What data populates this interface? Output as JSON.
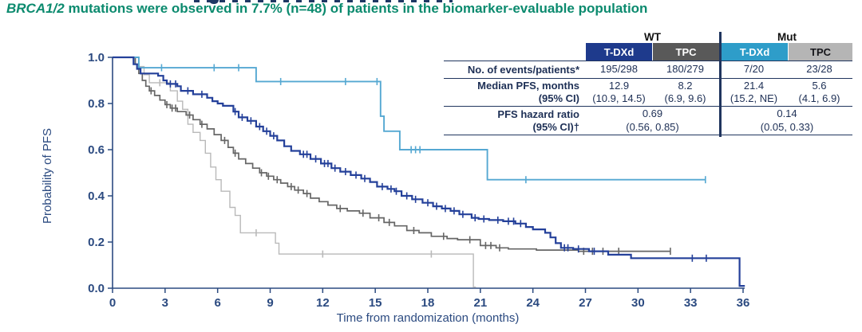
{
  "subtitle": {
    "gene": "BRCA1/2",
    "rest": " mutations were observed in 7.7% (n=48) of patients in the biomarker-evaluable population",
    "color": "#0b8a6e"
  },
  "table": {
    "groups": [
      {
        "label": "WT"
      },
      {
        "label": "Mut"
      }
    ],
    "columns": [
      {
        "label": "T-DXd",
        "bg": "#1e3a8c",
        "fg": "#ffffff"
      },
      {
        "label": "TPC",
        "bg": "#595959",
        "fg": "#ffffff"
      },
      {
        "label": "T-DXd",
        "bg": "#2e9dc9",
        "fg": "#ffffff"
      },
      {
        "label": "TPC",
        "bg": "#b5b5b5",
        "fg": "#15151a"
      }
    ],
    "rows": {
      "events": {
        "label": "No. of events/patients*",
        "values": [
          "195/298",
          "180/279",
          "7/20",
          "23/28"
        ]
      },
      "median": {
        "label": "Median PFS, months",
        "label2": "(95% CI)",
        "values": [
          "12.9",
          "8.2",
          "21.4",
          "5.6"
        ],
        "values2": [
          "(10.9, 14.5)",
          "(6.9, 9.6)",
          "(15.2, NE)",
          "(4.1, 6.9)"
        ]
      },
      "hr": {
        "label": "PFS hazard ratio",
        "label2": "(95% CI)†",
        "values": [
          "0.69",
          "0.14"
        ],
        "values2": [
          "(0.56, 0.85)",
          "(0.05, 0.33)"
        ]
      }
    }
  },
  "chart_data": {
    "type": "line",
    "subtype": "kaplan-meier-step",
    "title": "",
    "xlabel": "Time from randomization (months)",
    "ylabel": "Probability of PFS",
    "xlim": [
      0,
      36
    ],
    "ylim": [
      0.0,
      1.0
    ],
    "xticks": [
      0,
      3,
      6,
      9,
      12,
      15,
      18,
      21,
      24,
      27,
      30,
      33,
      36
    ],
    "yticks": [
      0.0,
      0.2,
      0.4,
      0.6,
      0.8,
      1.0
    ],
    "grid": false,
    "legend_position": "none (table acts as legend)",
    "axis_color": "#2b4a80",
    "series": [
      {
        "name": "TPC (Mut)",
        "color": "#b9b9b9",
        "width": 1.4,
        "points": [
          [
            0,
            1
          ],
          [
            1.5,
            0.96
          ],
          [
            1.8,
            0.925
          ],
          [
            2.1,
            0.89
          ],
          [
            3.3,
            0.855
          ],
          [
            3.7,
            0.81
          ],
          [
            4.0,
            0.775
          ],
          [
            4.3,
            0.71
          ],
          [
            4.6,
            0.675
          ],
          [
            5.0,
            0.64
          ],
          [
            5.3,
            0.585
          ],
          [
            5.6,
            0.525
          ],
          [
            5.9,
            0.47
          ],
          [
            6.2,
            0.42
          ],
          [
            6.7,
            0.35
          ],
          [
            7.0,
            0.315
          ],
          [
            7.3,
            0.24
          ],
          [
            9.3,
            0.195
          ],
          [
            9.5,
            0.148
          ],
          [
            20.6,
            0.005
          ],
          [
            20.75,
            0.005
          ]
        ],
        "censors": [
          [
            2.7,
            0.89
          ],
          [
            8.2,
            0.24
          ],
          [
            12.0,
            0.148
          ],
          [
            18.2,
            0.148
          ]
        ]
      },
      {
        "name": "TPC (WT)",
        "color": "#666666",
        "width": 1.7,
        "points": [
          [
            0,
            1
          ],
          [
            1.3,
            0.97
          ],
          [
            1.5,
            0.93
          ],
          [
            1.7,
            0.9
          ],
          [
            1.9,
            0.875
          ],
          [
            2.1,
            0.855
          ],
          [
            2.4,
            0.835
          ],
          [
            2.7,
            0.815
          ],
          [
            3.0,
            0.795
          ],
          [
            3.3,
            0.78
          ],
          [
            3.7,
            0.765
          ],
          [
            4.2,
            0.75
          ],
          [
            4.6,
            0.73
          ],
          [
            5.0,
            0.71
          ],
          [
            5.4,
            0.69
          ],
          [
            5.8,
            0.665
          ],
          [
            6.2,
            0.64
          ],
          [
            6.6,
            0.61
          ],
          [
            6.9,
            0.585
          ],
          [
            7.2,
            0.56
          ],
          [
            7.6,
            0.54
          ],
          [
            8.0,
            0.52
          ],
          [
            8.4,
            0.5
          ],
          [
            8.8,
            0.485
          ],
          [
            9.2,
            0.47
          ],
          [
            9.6,
            0.455
          ],
          [
            10.0,
            0.44
          ],
          [
            10.4,
            0.425
          ],
          [
            10.9,
            0.41
          ],
          [
            11.3,
            0.39
          ],
          [
            11.8,
            0.375
          ],
          [
            12.3,
            0.36
          ],
          [
            12.8,
            0.345
          ],
          [
            13.4,
            0.335
          ],
          [
            14.1,
            0.325
          ],
          [
            14.7,
            0.305
          ],
          [
            15.5,
            0.285
          ],
          [
            16.1,
            0.27
          ],
          [
            16.8,
            0.25
          ],
          [
            17.5,
            0.24
          ],
          [
            18.2,
            0.225
          ],
          [
            19.1,
            0.215
          ],
          [
            19.7,
            0.21
          ],
          [
            21.0,
            0.185
          ],
          [
            21.9,
            0.175
          ],
          [
            22.6,
            0.17
          ],
          [
            24.2,
            0.165
          ],
          [
            26.6,
            0.16
          ],
          [
            31.85,
            0.16
          ]
        ],
        "censors": [
          [
            2.2,
            0.855
          ],
          [
            3.1,
            0.795
          ],
          [
            3.4,
            0.78
          ],
          [
            3.6,
            0.78
          ],
          [
            4.4,
            0.75
          ],
          [
            5.1,
            0.71
          ],
          [
            6.4,
            0.64
          ],
          [
            7.0,
            0.585
          ],
          [
            8.5,
            0.5
          ],
          [
            8.9,
            0.485
          ],
          [
            9.4,
            0.47
          ],
          [
            10.2,
            0.44
          ],
          [
            10.6,
            0.425
          ],
          [
            11.1,
            0.41
          ],
          [
            13.0,
            0.345
          ],
          [
            14.3,
            0.325
          ],
          [
            15.2,
            0.305
          ],
          [
            15.8,
            0.285
          ],
          [
            17.2,
            0.25
          ],
          [
            18.9,
            0.225
          ],
          [
            20.4,
            0.21
          ],
          [
            21.3,
            0.185
          ],
          [
            21.6,
            0.185
          ],
          [
            22.1,
            0.175
          ],
          [
            26.9,
            0.16
          ],
          [
            27.4,
            0.16
          ],
          [
            28.0,
            0.16
          ],
          [
            28.9,
            0.16
          ],
          [
            31.85,
            0.16
          ]
        ]
      },
      {
        "name": "T-DXd (Mut)",
        "color": "#55a8d2",
        "width": 1.9,
        "points": [
          [
            0,
            1
          ],
          [
            1.5,
            0.955
          ],
          [
            8.2,
            0.895
          ],
          [
            15.3,
            0.745
          ],
          [
            15.5,
            0.68
          ],
          [
            16.4,
            0.6
          ],
          [
            21.4,
            0.47
          ],
          [
            33.85,
            0.47
          ]
        ],
        "censors": [
          [
            2.8,
            0.955
          ],
          [
            5.8,
            0.955
          ],
          [
            7.2,
            0.955
          ],
          [
            9.6,
            0.895
          ],
          [
            13.3,
            0.895
          ],
          [
            15.1,
            0.895
          ],
          [
            17.05,
            0.6
          ],
          [
            17.3,
            0.6
          ],
          [
            17.55,
            0.6
          ],
          [
            23.6,
            0.47
          ],
          [
            33.85,
            0.47
          ]
        ]
      },
      {
        "name": "T-DXd (WT)",
        "color": "#24409a",
        "width": 2.2,
        "points": [
          [
            0,
            1
          ],
          [
            1.2,
            0.97
          ],
          [
            1.4,
            0.95
          ],
          [
            1.6,
            0.93
          ],
          [
            2.6,
            0.92
          ],
          [
            2.9,
            0.9
          ],
          [
            3.1,
            0.885
          ],
          [
            3.7,
            0.875
          ],
          [
            3.9,
            0.855
          ],
          [
            4.6,
            0.84
          ],
          [
            5.4,
            0.825
          ],
          [
            5.7,
            0.81
          ],
          [
            6.0,
            0.8
          ],
          [
            6.3,
            0.79
          ],
          [
            6.9,
            0.765
          ],
          [
            7.2,
            0.74
          ],
          [
            7.7,
            0.725
          ],
          [
            8.2,
            0.7
          ],
          [
            8.6,
            0.68
          ],
          [
            9.0,
            0.66
          ],
          [
            9.4,
            0.64
          ],
          [
            9.8,
            0.615
          ],
          [
            10.2,
            0.595
          ],
          [
            10.7,
            0.58
          ],
          [
            11.3,
            0.56
          ],
          [
            11.9,
            0.54
          ],
          [
            12.5,
            0.52
          ],
          [
            13.0,
            0.505
          ],
          [
            13.6,
            0.49
          ],
          [
            14.2,
            0.475
          ],
          [
            14.7,
            0.46
          ],
          [
            15.1,
            0.44
          ],
          [
            15.7,
            0.43
          ],
          [
            16.1,
            0.42
          ],
          [
            16.5,
            0.4
          ],
          [
            17.1,
            0.385
          ],
          [
            17.7,
            0.37
          ],
          [
            18.3,
            0.355
          ],
          [
            18.8,
            0.345
          ],
          [
            19.3,
            0.335
          ],
          [
            19.8,
            0.32
          ],
          [
            20.5,
            0.305
          ],
          [
            20.9,
            0.3
          ],
          [
            21.5,
            0.295
          ],
          [
            22.3,
            0.29
          ],
          [
            23.0,
            0.28
          ],
          [
            23.6,
            0.265
          ],
          [
            24.0,
            0.255
          ],
          [
            24.7,
            0.24
          ],
          [
            25.0,
            0.22
          ],
          [
            25.3,
            0.195
          ],
          [
            25.6,
            0.175
          ],
          [
            26.3,
            0.17
          ],
          [
            27.2,
            0.16
          ],
          [
            28.3,
            0.145
          ],
          [
            29.6,
            0.13
          ],
          [
            35.8,
            0.01
          ],
          [
            36.1,
            0.01
          ]
        ],
        "censors": [
          [
            3.3,
            0.885
          ],
          [
            3.6,
            0.885
          ],
          [
            4.3,
            0.855
          ],
          [
            5.1,
            0.84
          ],
          [
            7.0,
            0.765
          ],
          [
            7.4,
            0.74
          ],
          [
            7.9,
            0.725
          ],
          [
            8.4,
            0.7
          ],
          [
            8.8,
            0.68
          ],
          [
            9.2,
            0.66
          ],
          [
            10.9,
            0.58
          ],
          [
            11.1,
            0.58
          ],
          [
            11.6,
            0.56
          ],
          [
            12.1,
            0.54
          ],
          [
            12.3,
            0.54
          ],
          [
            12.7,
            0.52
          ],
          [
            13.3,
            0.505
          ],
          [
            13.9,
            0.49
          ],
          [
            14.4,
            0.475
          ],
          [
            15.4,
            0.44
          ],
          [
            15.9,
            0.43
          ],
          [
            16.2,
            0.42
          ],
          [
            16.8,
            0.4
          ],
          [
            17.3,
            0.385
          ],
          [
            18.0,
            0.37
          ],
          [
            18.5,
            0.355
          ],
          [
            19.0,
            0.345
          ],
          [
            19.5,
            0.335
          ],
          [
            20.0,
            0.32
          ],
          [
            20.7,
            0.305
          ],
          [
            21.2,
            0.3
          ],
          [
            22.0,
            0.295
          ],
          [
            22.6,
            0.29
          ],
          [
            22.9,
            0.29
          ],
          [
            23.3,
            0.28
          ],
          [
            25.8,
            0.175
          ],
          [
            26.0,
            0.175
          ],
          [
            26.6,
            0.17
          ],
          [
            27.5,
            0.16
          ],
          [
            33.1,
            0.13
          ],
          [
            33.9,
            0.13
          ]
        ]
      }
    ]
  }
}
